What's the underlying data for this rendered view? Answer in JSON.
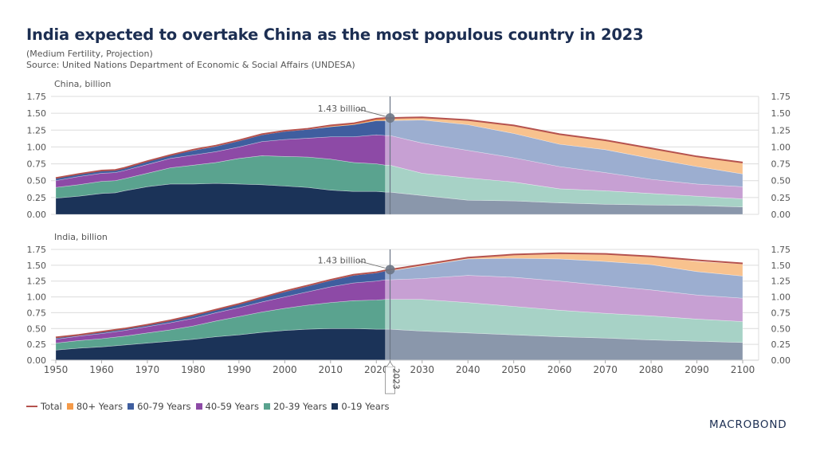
{
  "header": {
    "title": "India expected to overtake China as the most populous country in 2023",
    "subtitle": "(Medium Fertility, Projection)",
    "source": "Source: United Nations Department of Economic & Social Affairs (UNDESA)"
  },
  "branding": {
    "logo_text": "MACROBOND"
  },
  "chart_data": [
    {
      "type": "area",
      "stacked": true,
      "panel_title": "China, billion",
      "x": [
        1950,
        1955,
        1960,
        1963,
        1965,
        1970,
        1975,
        1980,
        1985,
        1990,
        1995,
        2000,
        2005,
        2010,
        2015,
        2020,
        2022,
        2023,
        2030,
        2040,
        2050,
        2060,
        2070,
        2080,
        2090,
        2100
      ],
      "series": [
        {
          "name": "0-19 Years",
          "color": "#1b3358",
          "values": [
            0.24,
            0.27,
            0.31,
            0.32,
            0.35,
            0.41,
            0.45,
            0.45,
            0.46,
            0.45,
            0.44,
            0.42,
            0.4,
            0.36,
            0.34,
            0.34,
            0.33,
            0.33,
            0.28,
            0.21,
            0.2,
            0.17,
            0.15,
            0.14,
            0.13,
            0.11
          ]
        },
        {
          "name": "20-39 Years",
          "color": "#5aa38f",
          "values": [
            0.16,
            0.17,
            0.18,
            0.18,
            0.18,
            0.2,
            0.24,
            0.28,
            0.31,
            0.38,
            0.43,
            0.44,
            0.45,
            0.46,
            0.43,
            0.41,
            0.4,
            0.4,
            0.33,
            0.33,
            0.28,
            0.21,
            0.2,
            0.17,
            0.14,
            0.12
          ]
        },
        {
          "name": "40-59 Years",
          "color": "#8d4aa6",
          "values": [
            0.1,
            0.12,
            0.12,
            0.12,
            0.12,
            0.13,
            0.14,
            0.15,
            0.16,
            0.17,
            0.21,
            0.25,
            0.28,
            0.33,
            0.38,
            0.43,
            0.44,
            0.44,
            0.45,
            0.41,
            0.36,
            0.33,
            0.27,
            0.21,
            0.18,
            0.18
          ]
        },
        {
          "name": "60-79 Years",
          "color": "#3f5e9f",
          "values": [
            0.04,
            0.04,
            0.04,
            0.04,
            0.04,
            0.05,
            0.05,
            0.07,
            0.08,
            0.09,
            0.1,
            0.12,
            0.13,
            0.15,
            0.18,
            0.21,
            0.22,
            0.22,
            0.34,
            0.38,
            0.36,
            0.33,
            0.34,
            0.31,
            0.26,
            0.19
          ]
        },
        {
          "name": "80+ Years",
          "color": "#f59a48",
          "values": [
            0.0,
            0.0,
            0.0,
            0.0,
            0.0,
            0.0,
            0.0,
            0.01,
            0.01,
            0.01,
            0.01,
            0.01,
            0.01,
            0.02,
            0.02,
            0.03,
            0.03,
            0.03,
            0.04,
            0.07,
            0.12,
            0.15,
            0.14,
            0.15,
            0.15,
            0.17
          ]
        }
      ],
      "total": {
        "name": "Total",
        "color": "#b5524e",
        "values": [
          0.54,
          0.6,
          0.65,
          0.66,
          0.69,
          0.79,
          0.88,
          0.96,
          1.02,
          1.1,
          1.19,
          1.24,
          1.27,
          1.32,
          1.35,
          1.42,
          1.43,
          1.43,
          1.44,
          1.4,
          1.32,
          1.19,
          1.1,
          0.98,
          0.86,
          0.77
        ]
      },
      "annotation": {
        "label": "1.43 billion",
        "x": 2023,
        "y": 1.43
      },
      "ylim": [
        0,
        1.75
      ],
      "yticks": [
        "0.00",
        "0.25",
        "0.50",
        "0.75",
        "1.00",
        "1.25",
        "1.50",
        "1.75"
      ],
      "projection_start": 2022,
      "legend": "bottom-left"
    },
    {
      "type": "area",
      "stacked": true,
      "panel_title": "India, billion",
      "x": [
        1950,
        1955,
        1960,
        1965,
        1970,
        1975,
        1980,
        1985,
        1990,
        1995,
        2000,
        2005,
        2010,
        2015,
        2020,
        2022,
        2023,
        2030,
        2040,
        2050,
        2060,
        2070,
        2080,
        2090,
        2100
      ],
      "series": [
        {
          "name": "0-19 Years",
          "color": "#1b3358",
          "values": [
            0.16,
            0.19,
            0.21,
            0.24,
            0.27,
            0.3,
            0.33,
            0.37,
            0.4,
            0.44,
            0.47,
            0.49,
            0.5,
            0.5,
            0.49,
            0.49,
            0.49,
            0.46,
            0.43,
            0.4,
            0.37,
            0.35,
            0.32,
            0.3,
            0.28
          ]
        },
        {
          "name": "20-39 Years",
          "color": "#5aa38f",
          "values": [
            0.11,
            0.12,
            0.13,
            0.14,
            0.16,
            0.18,
            0.21,
            0.25,
            0.29,
            0.32,
            0.35,
            0.38,
            0.41,
            0.44,
            0.46,
            0.47,
            0.47,
            0.5,
            0.48,
            0.45,
            0.42,
            0.39,
            0.38,
            0.35,
            0.33
          ]
        },
        {
          "name": "40-59 Years",
          "color": "#8d4aa6",
          "values": [
            0.06,
            0.07,
            0.08,
            0.09,
            0.1,
            0.11,
            0.12,
            0.13,
            0.14,
            0.16,
            0.18,
            0.21,
            0.25,
            0.28,
            0.3,
            0.31,
            0.31,
            0.33,
            0.43,
            0.46,
            0.46,
            0.44,
            0.41,
            0.38,
            0.37
          ]
        },
        {
          "name": "60-79 Years",
          "color": "#3f5e9f",
          "values": [
            0.02,
            0.02,
            0.03,
            0.03,
            0.03,
            0.04,
            0.05,
            0.05,
            0.06,
            0.07,
            0.08,
            0.09,
            0.1,
            0.12,
            0.13,
            0.14,
            0.14,
            0.2,
            0.26,
            0.3,
            0.35,
            0.38,
            0.4,
            0.37,
            0.35
          ]
        },
        {
          "name": "80+ Years",
          "color": "#f59a48",
          "values": [
            0.0,
            0.0,
            0.0,
            0.0,
            0.0,
            0.0,
            0.0,
            0.0,
            0.0,
            0.0,
            0.01,
            0.01,
            0.01,
            0.01,
            0.01,
            0.02,
            0.02,
            0.02,
            0.03,
            0.05,
            0.08,
            0.11,
            0.14,
            0.16,
            0.19
          ]
        }
      ],
      "total": {
        "name": "Total",
        "color": "#b5524e",
        "values": [
          0.36,
          0.4,
          0.45,
          0.5,
          0.56,
          0.63,
          0.71,
          0.8,
          0.89,
          0.99,
          1.09,
          1.18,
          1.27,
          1.35,
          1.39,
          1.42,
          1.43,
          1.51,
          1.62,
          1.67,
          1.69,
          1.68,
          1.64,
          1.58,
          1.53
        ]
      },
      "annotation": {
        "label": "1.43 billion",
        "x": 2023,
        "y": 1.43
      },
      "ylim": [
        0,
        1.75
      ],
      "yticks": [
        "0.00",
        "0.25",
        "0.50",
        "0.75",
        "1.00",
        "1.25",
        "1.50",
        "1.75"
      ],
      "xlim": [
        1950,
        2100
      ],
      "xticks": [
        "1950",
        "1960",
        "1970",
        "1980",
        "1990",
        "2000",
        "2010",
        "2020",
        "2030",
        "2040",
        "2050",
        "2060",
        "2070",
        "2080",
        "2090",
        "2100"
      ],
      "marker_label": "2023",
      "projection_start": 2022
    }
  ],
  "legend": {
    "items": [
      {
        "label": "Total",
        "color": "#b5524e",
        "kind": "line"
      },
      {
        "label": "80+ Years",
        "color": "#f59a48",
        "kind": "box"
      },
      {
        "label": "60-79 Years",
        "color": "#3f5e9f",
        "kind": "box"
      },
      {
        "label": "40-59 Years",
        "color": "#8d4aa6",
        "kind": "box"
      },
      {
        "label": "20-39 Years",
        "color": "#5aa38f",
        "kind": "box"
      },
      {
        "label": "0-19 Years",
        "color": "#1b3358",
        "kind": "box"
      }
    ]
  }
}
